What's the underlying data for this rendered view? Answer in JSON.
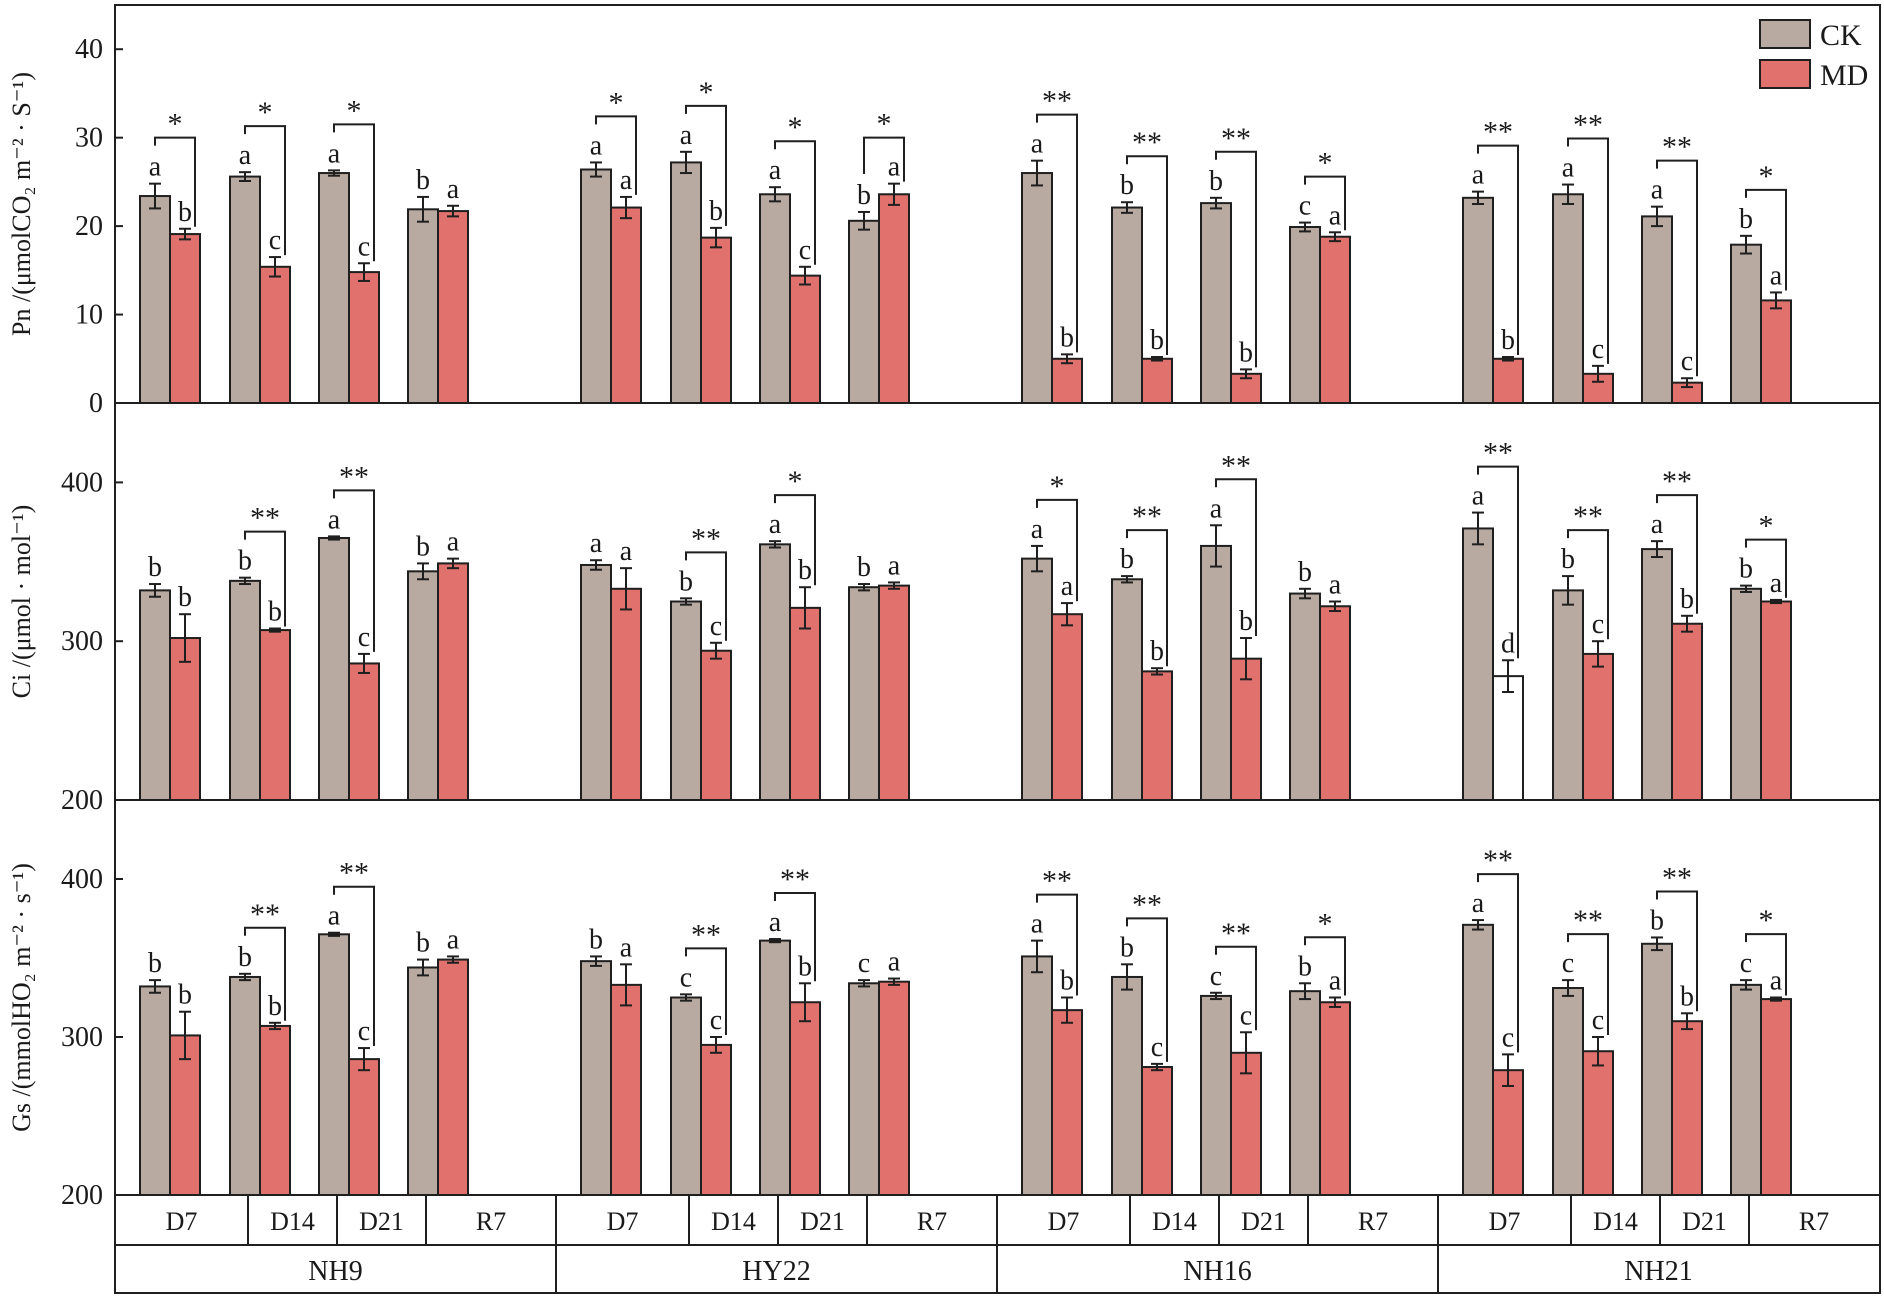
{
  "colors": {
    "ck": "#b8aaa0",
    "md": "#e0716c",
    "md_white": "#ffffff",
    "stroke": "#1f1f1f"
  },
  "legend": [
    {
      "name": "CK",
      "color": "#b8aaa0"
    },
    {
      "name": "MD",
      "color": "#e0716c"
    }
  ],
  "x_axis": {
    "treatments": [
      "D7",
      "D14",
      "D21",
      "R7"
    ],
    "varieties": [
      "NH9",
      "HY22",
      "NH16",
      "NH21"
    ]
  },
  "chart_data": [
    {
      "type": "bar",
      "panel": "Pn",
      "ylabel": "Pn /(μmolCO₂ m⁻² · S⁻¹)",
      "ylim": [
        0,
        45
      ],
      "yticks": [
        0,
        10,
        20,
        30,
        40
      ],
      "series": [
        {
          "name": "CK",
          "values": [
            23.4,
            25.6,
            26.0,
            21.9,
            26.4,
            27.2,
            23.6,
            20.6,
            26.0,
            22.1,
            22.6,
            19.9,
            23.2,
            23.6,
            21.1,
            17.9
          ],
          "errors": [
            1.4,
            0.5,
            0.3,
            1.4,
            0.8,
            1.2,
            0.8,
            1.0,
            1.4,
            0.6,
            0.6,
            0.5,
            0.7,
            1.1,
            1.1,
            1.0
          ]
        },
        {
          "name": "MD",
          "values": [
            19.1,
            15.4,
            14.8,
            21.7,
            22.1,
            18.7,
            14.4,
            23.6,
            5.0,
            5.0,
            3.3,
            18.8,
            5.0,
            3.3,
            2.3,
            11.6
          ],
          "errors": [
            0.6,
            1.1,
            1.0,
            0.6,
            1.2,
            1.1,
            1.0,
            1.2,
            0.5,
            0.2,
            0.5,
            0.5,
            0.2,
            0.9,
            0.5,
            0.9
          ]
        }
      ],
      "letters_ck": [
        "a",
        "a",
        "a",
        "b",
        "a",
        "a",
        "a",
        "b",
        "a",
        "b",
        "b",
        "c",
        "a",
        "a",
        "a",
        "b"
      ],
      "letters_md": [
        "b",
        "c",
        "c",
        "a",
        "a",
        "b",
        "c",
        "a",
        "b",
        "b",
        "b",
        "a",
        "b",
        "c",
        "c",
        "a"
      ],
      "significance": [
        "*",
        "*",
        "*",
        "",
        "*",
        "*",
        "*",
        "*",
        "**",
        "**",
        "**",
        "*",
        "**",
        "**",
        "**",
        "*"
      ]
    },
    {
      "type": "bar",
      "panel": "Ci",
      "ylabel": "Ci /(μmol · mol⁻¹)",
      "ylim": [
        200,
        450
      ],
      "yticks": [
        200,
        300,
        400
      ],
      "series": [
        {
          "name": "CK",
          "values": [
            332,
            338,
            365,
            344,
            348,
            325,
            361,
            334,
            352,
            339,
            360,
            330,
            371,
            332,
            358,
            333
          ],
          "errors": [
            4,
            2,
            1,
            5,
            3,
            2,
            2,
            2,
            8,
            2,
            13,
            3,
            10,
            9,
            5,
            2
          ]
        },
        {
          "name": "MD",
          "values": [
            302,
            307,
            286,
            349,
            333,
            294,
            321,
            335,
            317,
            281,
            289,
            322,
            278,
            292,
            311,
            325
          ],
          "errors": [
            15,
            1,
            6,
            3,
            13,
            5,
            13,
            2,
            7,
            2,
            13,
            3,
            10,
            8,
            5,
            1
          ]
        }
      ],
      "letters_ck": [
        "b",
        "b",
        "a",
        "b",
        "a",
        "b",
        "a",
        "b",
        "a",
        "b",
        "a",
        "b",
        "a",
        "b",
        "a",
        "b"
      ],
      "letters_md": [
        "b",
        "b",
        "c",
        "a",
        "a",
        "c",
        "b",
        "a",
        "a",
        "b",
        "b",
        "a",
        "d",
        "c",
        "b",
        "a"
      ],
      "significance": [
        "",
        "**",
        "**",
        "",
        "",
        "**",
        "*",
        "",
        "*",
        "**",
        "**",
        "",
        "**",
        "**",
        "**",
        "*"
      ],
      "md_white_index": [
        12
      ]
    },
    {
      "type": "bar",
      "panel": "Gs",
      "ylabel": "Gs /(mmolHO₂ m⁻² · s⁻¹)",
      "ylim": [
        200,
        450
      ],
      "yticks": [
        200,
        300,
        400
      ],
      "series": [
        {
          "name": "CK",
          "values": [
            332,
            338,
            365,
            344,
            348,
            325,
            361,
            334,
            351,
            338,
            326,
            329,
            371,
            331,
            359,
            333
          ],
          "errors": [
            4,
            2,
            1,
            5,
            3,
            2,
            1,
            2,
            10,
            8,
            2,
            5,
            3,
            5,
            4,
            3
          ]
        },
        {
          "name": "MD",
          "values": [
            301,
            307,
            286,
            349,
            333,
            295,
            322,
            335,
            317,
            281,
            290,
            322,
            279,
            291,
            310,
            324
          ],
          "errors": [
            15,
            2,
            7,
            2,
            13,
            5,
            12,
            2,
            8,
            2,
            13,
            3,
            10,
            9,
            5,
            1
          ]
        }
      ],
      "letters_ck": [
        "b",
        "b",
        "a",
        "b",
        "b",
        "c",
        "a",
        "c",
        "a",
        "b",
        "c",
        "b",
        "a",
        "c",
        "b",
        "c"
      ],
      "letters_md": [
        "b",
        "b",
        "c",
        "a",
        "a",
        "c",
        "b",
        "a",
        "b",
        "c",
        "c",
        "a",
        "c",
        "c",
        "b",
        "a"
      ],
      "significance": [
        "",
        "**",
        "**",
        "",
        "",
        "**",
        "**",
        "",
        "**",
        "**",
        "**",
        "*",
        "**",
        "**",
        "**",
        "*"
      ]
    }
  ]
}
